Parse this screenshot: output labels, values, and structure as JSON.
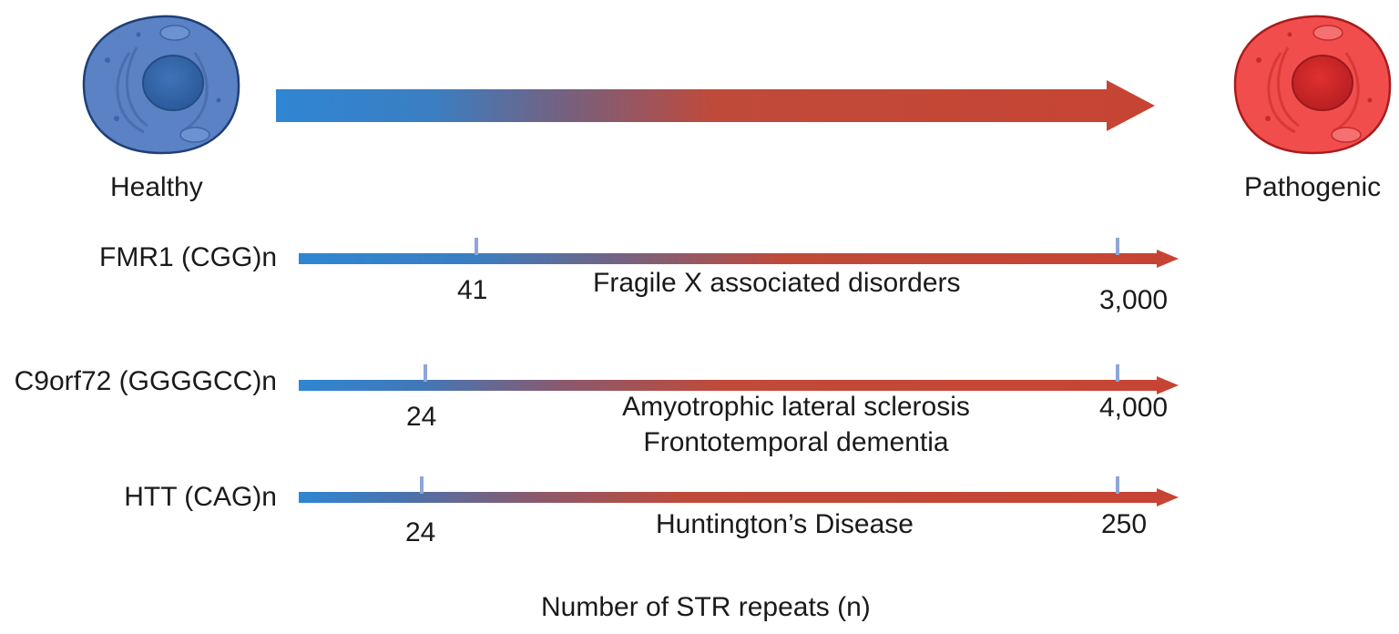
{
  "header": {
    "healthy_label": "Healthy",
    "pathogenic_label": "Pathogenic"
  },
  "rows": [
    {
      "name": "FMR1 (CGG)n",
      "low_value": "41",
      "high_value": "3,000",
      "diseases": [
        "Fragile X associated disorders"
      ]
    },
    {
      "name": "C9orf72 (GGGGCC)n",
      "low_value": "24",
      "high_value": "4,000",
      "diseases": [
        "Amyotrophic lateral sclerosis",
        "Frontotemporal dementia"
      ]
    },
    {
      "name": "HTT (CAG)n",
      "low_value": "24",
      "high_value": "250",
      "diseases": [
        "Huntington’s Disease"
      ]
    }
  ],
  "axis_caption": "Number of STR repeats (n)",
  "colors": {
    "healthy_blue": "#3483c9",
    "pathogenic_red": "#c74433",
    "tick": "#8ea6d6",
    "healthy_cell": "#5b82c4",
    "pathogenic_cell": "#f24d4d"
  }
}
